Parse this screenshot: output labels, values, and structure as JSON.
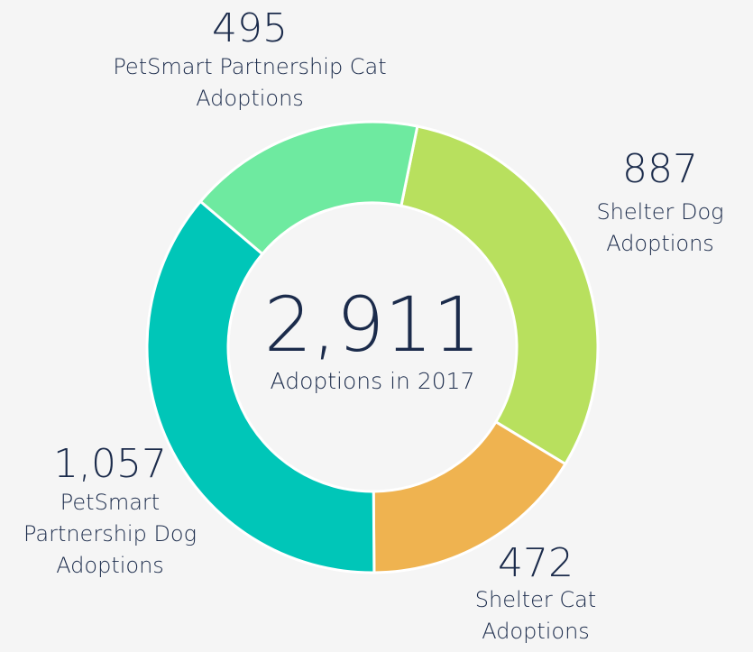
{
  "chart_data": {
    "type": "donut",
    "total": 2911,
    "total_label": "2,911",
    "subtitle": "Adoptions in 2017",
    "categories": [
      "Shelter Dog Adoptions",
      "Shelter Cat Adoptions",
      "PetSmart Partnership Dog Adoptions",
      "PetSmart Partnership Cat Adoptions"
    ],
    "values": [
      887,
      472,
      1057,
      495
    ],
    "value_labels": [
      "887",
      "472",
      "1,057",
      "495"
    ],
    "colors": [
      "#b8e05e",
      "#efb350",
      "#00c6b8",
      "#6eeaa0"
    ]
  }
}
